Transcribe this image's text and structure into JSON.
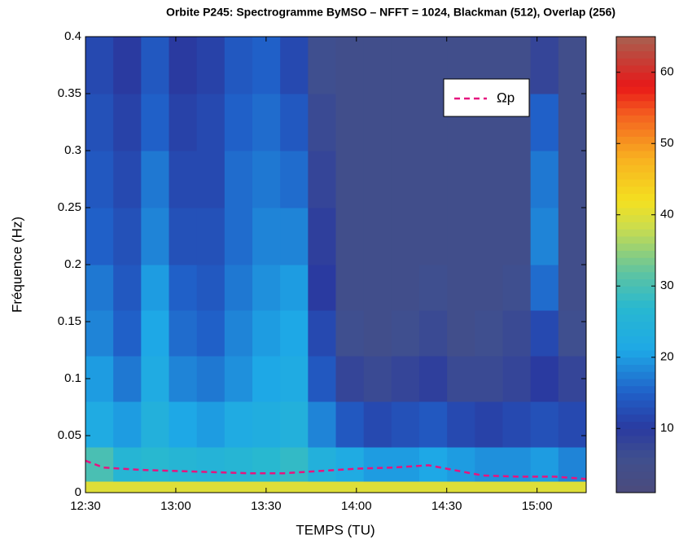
{
  "chart_data": {
    "type": "heatmap",
    "title": "Orbite P245: Spectrogramme ByMSO – NFFT = 1024, Blackman (512), Overlap (256)",
    "xlabel": "TEMPS (TU)",
    "ylabel": "Fréquence (Hz)",
    "xlim": [
      12.5,
      15.272
    ],
    "ylim": [
      0,
      0.4
    ],
    "xticks": [
      {
        "value": 12.5,
        "label": "12:30"
      },
      {
        "value": 13.0,
        "label": "13:00"
      },
      {
        "value": 13.5,
        "label": "13:30"
      },
      {
        "value": 14.0,
        "label": "14:00"
      },
      {
        "value": 14.5,
        "label": "14:30"
      },
      {
        "value": 15.0,
        "label": "15:00"
      }
    ],
    "yticks": [
      0,
      0.05,
      0.1,
      0.15,
      0.2,
      0.25,
      0.3,
      0.35,
      0.4
    ],
    "x_edges": [
      12.5,
      12.654,
      12.808,
      12.962,
      13.116,
      13.27,
      13.424,
      13.578,
      13.732,
      13.886,
      14.04,
      14.194,
      14.348,
      14.502,
      14.656,
      14.81,
      14.964,
      15.118,
      15.272
    ],
    "y_edges": [
      0,
      0.01,
      0.04,
      0.08,
      0.12,
      0.16,
      0.2,
      0.25,
      0.3,
      0.35,
      0.4
    ],
    "z": [
      [
        40,
        40,
        40,
        40,
        40,
        40,
        40,
        40,
        40,
        40,
        40,
        40,
        40,
        40,
        40,
        40,
        40,
        40
      ],
      [
        30,
        26,
        27,
        26,
        25,
        26,
        27,
        28,
        24,
        22,
        20,
        20,
        21,
        20,
        19,
        19,
        20,
        18
      ],
      [
        22,
        20,
        24,
        21,
        20,
        22,
        23,
        24,
        18,
        14,
        12,
        13,
        14,
        12,
        11,
        12,
        13,
        12
      ],
      [
        20,
        17,
        22,
        18,
        17,
        19,
        21,
        22,
        14,
        8,
        7,
        8,
        9,
        7,
        7,
        8,
        10,
        8
      ],
      [
        18,
        15,
        21,
        16,
        15,
        18,
        20,
        21,
        12,
        6,
        5,
        6,
        7,
        5,
        6,
        7,
        12,
        6
      ],
      [
        17,
        14,
        20,
        15,
        14,
        17,
        19,
        20,
        10,
        5,
        5,
        5,
        6,
        5,
        5,
        6,
        16,
        5
      ],
      [
        15,
        13,
        18,
        13,
        13,
        16,
        18,
        18,
        9,
        5,
        5,
        5,
        5,
        5,
        5,
        5,
        18,
        5
      ],
      [
        14,
        12,
        17,
        12,
        12,
        16,
        17,
        16,
        8,
        5,
        5,
        5,
        5,
        5,
        5,
        5,
        17,
        5
      ],
      [
        13,
        11,
        15,
        11,
        12,
        15,
        16,
        14,
        7,
        5,
        5,
        5,
        5,
        5,
        5,
        5,
        15,
        5
      ],
      [
        12,
        10,
        14,
        10,
        11,
        14,
        15,
        12,
        6,
        5,
        5,
        5,
        5,
        5,
        5,
        5,
        8,
        5
      ]
    ],
    "clim": [
      1,
      65
    ],
    "cticks": [
      10,
      20,
      30,
      40,
      50,
      60
    ],
    "colormap": [
      {
        "value": 1,
        "color": "#4b4b7c"
      },
      {
        "value": 6,
        "color": "#3f4f8f"
      },
      {
        "value": 10,
        "color": "#2a3aa0"
      },
      {
        "value": 15,
        "color": "#2060c8"
      },
      {
        "value": 21,
        "color": "#1ea8e6"
      },
      {
        "value": 27,
        "color": "#28b8d0"
      },
      {
        "value": 32,
        "color": "#60c4a0"
      },
      {
        "value": 38,
        "color": "#c8dc50"
      },
      {
        "value": 42,
        "color": "#f4e020"
      },
      {
        "value": 48,
        "color": "#f8b020"
      },
      {
        "value": 54,
        "color": "#f46020"
      },
      {
        "value": 58,
        "color": "#e81818"
      },
      {
        "value": 65,
        "color": "#a86050"
      }
    ],
    "series": [
      {
        "name": "Ωp",
        "color": "#e6147f",
        "dash": true,
        "x": [
          12.5,
          12.6,
          12.8,
          13.0,
          13.2,
          13.4,
          13.6,
          13.8,
          14.0,
          14.2,
          14.4,
          14.5,
          14.7,
          14.9,
          15.1,
          15.27
        ],
        "values": [
          0.028,
          0.022,
          0.02,
          0.019,
          0.018,
          0.017,
          0.017,
          0.019,
          0.021,
          0.022,
          0.024,
          0.021,
          0.015,
          0.014,
          0.014,
          0.012
        ]
      }
    ],
    "legend": "upper right"
  }
}
